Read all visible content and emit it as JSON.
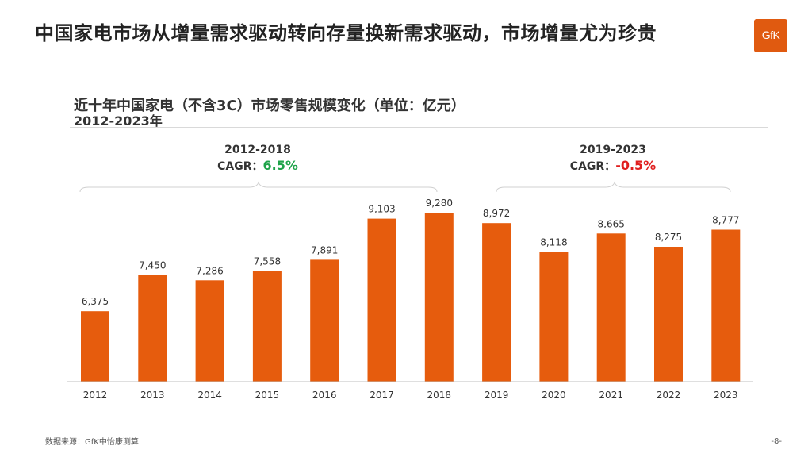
{
  "slide": {
    "title": "中国家电市场从增量需求驱动转向存量换新需求驱动，市场增量尤为珍贵",
    "logo_text": "GfK",
    "footer_source": "数据来源：GfK中怡康测算",
    "page_number": "-8-"
  },
  "annotations": [
    {
      "range": "2012-2018",
      "cagr_label": "CAGR：",
      "cagr_value": "6.5%",
      "color": "#1fa34a"
    },
    {
      "range": "2019-2023",
      "cagr_label": "CAGR：",
      "cagr_value": "-0.5%",
      "color": "#e01f1f"
    }
  ],
  "chart_data": {
    "type": "bar",
    "title": "近十年中国家电（不含3C）市场零售规模变化（单位：亿元）",
    "subtitle": "2012-2023年",
    "categories": [
      "2012",
      "2013",
      "2014",
      "2015",
      "2016",
      "2017",
      "2018",
      "2019",
      "2020",
      "2021",
      "2022",
      "2023"
    ],
    "values": [
      6375,
      7450,
      7286,
      7558,
      7891,
      9103,
      9280,
      8972,
      8118,
      8665,
      8275,
      8777
    ],
    "data_labels": [
      "6,375",
      "7,450",
      "7,286",
      "7,558",
      "7,891",
      "9,103",
      "9,280",
      "8,972",
      "8,118",
      "8,665",
      "8,275",
      "8,777"
    ],
    "ylim": [
      4300,
      9350
    ],
    "grid": false,
    "legend": "none",
    "bar_color": "#e65c0d"
  }
}
